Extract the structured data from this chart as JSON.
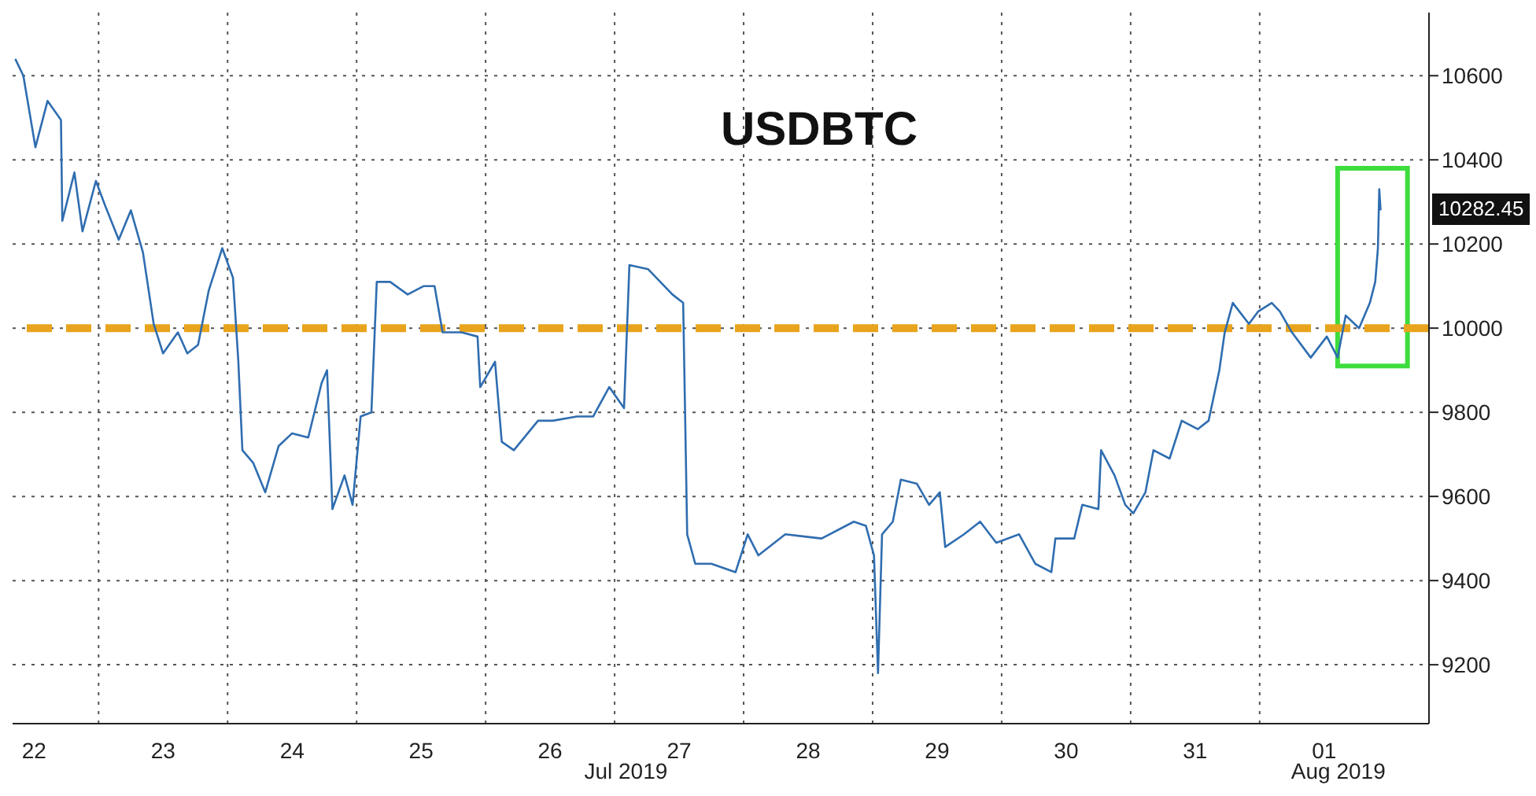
{
  "chart_data": {
    "type": "line",
    "title": "USDBTC",
    "x": [
      "2019-07-22T08:30",
      "2019-07-22T10:00",
      "2019-07-22T12:15",
      "2019-07-22T14:30",
      "2019-07-22T17:00",
      "2019-07-22T17:15",
      "2019-07-22T19:30",
      "2019-07-22T21:00",
      "2019-07-22T23:30",
      "2019-07-23T01:15",
      "2019-07-23T03:45",
      "2019-07-23T06:00",
      "2019-07-23T08:15",
      "2019-07-23T10:15",
      "2019-07-23T12:00",
      "2019-07-23T14:45",
      "2019-07-23T16:30",
      "2019-07-23T18:30",
      "2019-07-23T20:30",
      "2019-07-23T23:00",
      "2019-07-24T01:00",
      "2019-07-24T02:00",
      "2019-07-24T02:45",
      "2019-07-24T04:45",
      "2019-07-24T07:00",
      "2019-07-24T09:30",
      "2019-07-24T12:00",
      "2019-07-24T15:00",
      "2019-07-24T17:30",
      "2019-07-24T18:30",
      "2019-07-24T19:30",
      "2019-07-24T21:45",
      "2019-07-24T23:15",
      "2019-07-25T00:45",
      "2019-07-25T02:45",
      "2019-07-25T03:45",
      "2019-07-25T06:15",
      "2019-07-25T09:30",
      "2019-07-25T12:30",
      "2019-07-25T14:30",
      "2019-07-25T16:00",
      "2019-07-25T19:30",
      "2019-07-25T22:30",
      "2019-07-25T23:00",
      "2019-07-26T01:45",
      "2019-07-26T03:00",
      "2019-07-26T05:15",
      "2019-07-26T09:45",
      "2019-07-26T12:30",
      "2019-07-26T17:00",
      "2019-07-26T20:00",
      "2019-07-26T23:00",
      "2019-07-27T01:45",
      "2019-07-27T02:45",
      "2019-07-27T06:15",
      "2019-07-27T10:45",
      "2019-07-27T12:45",
      "2019-07-27T13:30",
      "2019-07-27T15:00",
      "2019-07-27T18:00",
      "2019-07-27T22:30",
      "2019-07-28T00:45",
      "2019-07-28T02:45",
      "2019-07-28T07:45",
      "2019-07-28T14:30",
      "2019-07-28T20:30",
      "2019-07-28T22:45",
      "2019-07-29T00:15",
      "2019-07-29T01:00",
      "2019-07-29T01:45",
      "2019-07-29T03:45",
      "2019-07-29T05:15",
      "2019-07-29T08:15",
      "2019-07-29T10:30",
      "2019-07-29T12:30",
      "2019-07-29T13:30",
      "2019-07-29T17:00",
      "2019-07-29T20:00",
      "2019-07-29T23:00",
      "2019-07-30T03:15",
      "2019-07-30T06:15",
      "2019-07-30T09:15",
      "2019-07-30T10:00",
      "2019-07-30T13:30",
      "2019-07-30T15:00",
      "2019-07-30T18:00",
      "2019-07-30T18:30",
      "2019-07-30T21:00",
      "2019-07-30T23:00",
      "2019-07-31T00:30",
      "2019-07-31T02:45",
      "2019-07-31T04:15",
      "2019-07-31T07:15",
      "2019-07-31T09:30",
      "2019-07-31T12:30",
      "2019-07-31T14:30",
      "2019-07-31T16:30",
      "2019-07-31T17:30",
      "2019-07-31T19:00",
      "2019-07-31T22:00",
      "2019-07-31T23:45",
      "2019-08-01T02:15",
      "2019-08-01T03:45",
      "2019-08-01T06:00",
      "2019-08-01T09:30",
      "2019-08-01T12:30",
      "2019-08-01T14:30",
      "2019-08-01T16:00",
      "2019-08-01T18:30",
      "2019-08-01T20:30",
      "2019-08-01T21:30",
      "2019-08-01T22:00",
      "2019-08-01T22:15",
      "2019-08-01T22:30"
    ],
    "series": [
      {
        "color": "#2f6db0",
        "values": [
          10640,
          10600,
          10430,
          10540,
          10495,
          10255,
          10370,
          10230,
          10350,
          10290,
          10210,
          10280,
          10180,
          10010,
          9940,
          9990,
          9940,
          9960,
          10090,
          10190,
          10120,
          9920,
          9710,
          9680,
          9610,
          9720,
          9750,
          9740,
          9870,
          9900,
          9570,
          9650,
          9580,
          9790,
          9800,
          10110,
          10110,
          10080,
          10100,
          10100,
          9990,
          9990,
          9980,
          9860,
          9920,
          9730,
          9710,
          9780,
          9780,
          9790,
          9790,
          9860,
          9810,
          10150,
          10140,
          10080,
          10060,
          9510,
          9440,
          9440,
          9420,
          9510,
          9460,
          9510,
          9500,
          9540,
          9530,
          9460,
          9180,
          9510,
          9540,
          9640,
          9630,
          9580,
          9610,
          9480,
          9510,
          9540,
          9490,
          9510,
          9440,
          9420,
          9500,
          9500,
          9580,
          9570,
          9710,
          9650,
          9580,
          9560,
          9610,
          9710,
          9690,
          9780,
          9760,
          9780,
          9900,
          9990,
          10060,
          10010,
          10040,
          10060,
          10040,
          9990,
          9930,
          9980,
          9930,
          10030,
          10000,
          10060,
          10110,
          10190,
          10330,
          10280
        ]
      }
    ],
    "xlim": [
      "2019-07-22T08:00",
      "2019-08-02T07:30"
    ],
    "xticks": [
      {
        "value": "2019-07-22T12:00",
        "label": "22"
      },
      {
        "value": "2019-07-23T00:00",
        "label": null
      },
      {
        "value": "2019-07-23T12:00",
        "label": "23"
      },
      {
        "value": "2019-07-24T00:00",
        "label": null
      },
      {
        "value": "2019-07-24T12:00",
        "label": "24"
      },
      {
        "value": "2019-07-25T00:00",
        "label": null
      },
      {
        "value": "2019-07-25T12:00",
        "label": "25"
      },
      {
        "value": "2019-07-26T00:00",
        "label": null
      },
      {
        "value": "2019-07-26T12:00",
        "label": "26"
      },
      {
        "value": "2019-07-27T00:00",
        "label": null
      },
      {
        "value": "2019-07-27T12:00",
        "label": "27"
      },
      {
        "value": "2019-07-28T00:00",
        "label": null
      },
      {
        "value": "2019-07-28T12:00",
        "label": "28"
      },
      {
        "value": "2019-07-29T00:00",
        "label": null
      },
      {
        "value": "2019-07-29T12:00",
        "label": "29"
      },
      {
        "value": "2019-07-30T00:00",
        "label": null
      },
      {
        "value": "2019-07-30T12:00",
        "label": "30"
      },
      {
        "value": "2019-07-31T00:00",
        "label": null
      },
      {
        "value": "2019-07-31T12:00",
        "label": "31"
      },
      {
        "value": "2019-08-01T00:00",
        "label": null
      },
      {
        "value": "2019-08-01T12:00",
        "label": "01"
      }
    ],
    "ylim": [
      9060,
      10750
    ],
    "yticks": [
      9200,
      9400,
      9600,
      9800,
      10000,
      10200,
      10400,
      10600
    ],
    "grid": true,
    "ref_lines": [
      {
        "axis": "y",
        "value": 10000,
        "color": "#e8a41c",
        "line_style": "dashed"
      }
    ],
    "annotations": [
      "Jul 2019",
      "Aug 2019",
      {
        "text": "10282.45",
        "x": "2019-08-01T22:30",
        "y": 10282.45
      }
    ],
    "legend": false,
    "line_style": "solid",
    "marker": "none"
  }
}
